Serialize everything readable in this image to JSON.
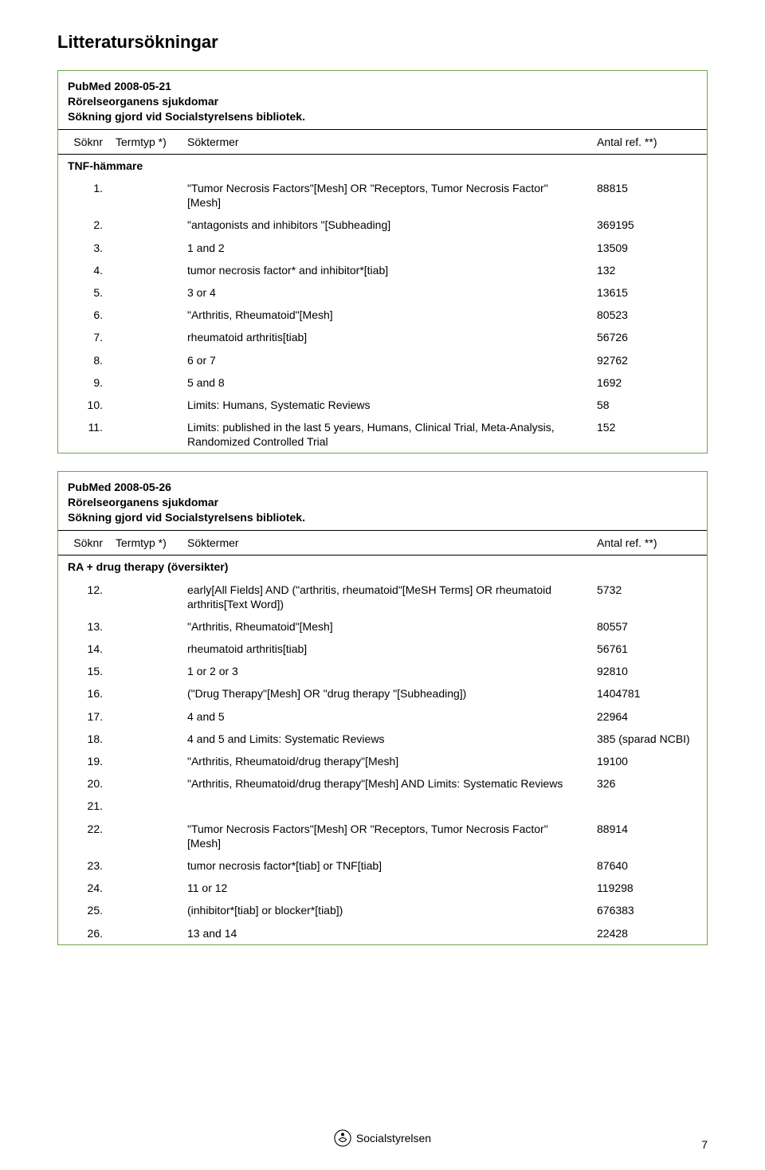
{
  "title": "Litteratursökningar",
  "search1": {
    "line1": "PubMed 2008-05-21",
    "line2": "Rörelseorganens sjukdomar",
    "line3": "Sökning gjord vid Socialstyrelsens bibliotek.",
    "h_num": "Söknr",
    "h_typ": "Termtyp *)",
    "h_term": "Söktermer",
    "h_ref": "Antal ref. **)",
    "subhead": "TNF-hämmare",
    "rows": [
      {
        "n": "1.",
        "t": "\"Tumor Necrosis Factors\"[Mesh] OR \"Receptors, Tumor Necrosis Factor\"[Mesh]",
        "r": "88815"
      },
      {
        "n": "2.",
        "t": "\"antagonists and inhibitors \"[Subheading]",
        "r": "369195"
      },
      {
        "n": "3.",
        "t": "1 and 2",
        "r": "13509"
      },
      {
        "n": "4.",
        "t": "tumor necrosis factor* and inhibitor*[tiab]",
        "r": "132"
      },
      {
        "n": "5.",
        "t": "3 or 4",
        "r": "13615"
      },
      {
        "n": "6.",
        "t": "\"Arthritis, Rheumatoid\"[Mesh]",
        "r": "80523"
      },
      {
        "n": "7.",
        "t": "rheumatoid arthritis[tiab]",
        "r": "56726"
      },
      {
        "n": "8.",
        "t": "6 or 7",
        "r": "92762"
      },
      {
        "n": "9.",
        "t": "5 and 8",
        "r": "1692"
      },
      {
        "n": "10.",
        "t": "Limits: Humans, Systematic Reviews",
        "r": "58"
      },
      {
        "n": "11.",
        "t": "Limits: published in the last 5 years, Humans, Clinical Trial, Meta-Analysis, Randomized Controlled Trial",
        "r": "152"
      }
    ]
  },
  "search2": {
    "line1": "PubMed 2008-05-26",
    "line2": "Rörelseorganens sjukdomar",
    "line3": "Sökning gjord vid Socialstyrelsens bibliotek.",
    "h_num": "Söknr",
    "h_typ": "Termtyp *)",
    "h_term": "Söktermer",
    "h_ref": "Antal ref. **)",
    "subhead": "RA + drug therapy (översikter)",
    "rows": [
      {
        "n": "12.",
        "t": "early[All Fields] AND (\"arthritis, rheumatoid\"[MeSH Terms] OR rheumatoid arthritis[Text Word])",
        "r": "5732"
      },
      {
        "n": "13.",
        "t": "\"Arthritis, Rheumatoid\"[Mesh]",
        "r": "80557"
      },
      {
        "n": "14.",
        "t": "rheumatoid arthritis[tiab]",
        "r": "56761"
      },
      {
        "n": "15.",
        "t": "1 or 2 or 3",
        "r": "92810"
      },
      {
        "n": "16.",
        "t": "(\"Drug Therapy\"[Mesh] OR \"drug therapy \"[Subheading])",
        "r": "1404781"
      },
      {
        "n": "17.",
        "t": "4 and 5",
        "r": "22964"
      },
      {
        "n": "18.",
        "t": "4 and 5 and Limits: Systematic Reviews",
        "r": "385 (sparad NCBI)"
      },
      {
        "n": "19.",
        "t": "\"Arthritis, Rheumatoid/drug therapy\"[Mesh]",
        "r": "19100"
      },
      {
        "n": "20.",
        "t": "\"Arthritis, Rheumatoid/drug therapy\"[Mesh] AND Limits: Systematic Reviews",
        "r": "326"
      },
      {
        "n": "21.",
        "t": "",
        "r": ""
      },
      {
        "n": "22.",
        "t": "\"Tumor Necrosis Factors\"[Mesh] OR \"Receptors, Tumor Necrosis Factor\"[Mesh]",
        "r": "88914"
      },
      {
        "n": "23.",
        "t": "tumor necrosis factor*[tiab] or TNF[tiab]",
        "r": "87640"
      },
      {
        "n": "24.",
        "t": "11 or 12",
        "r": "119298"
      },
      {
        "n": "25.",
        "t": "(inhibitor*[tiab] or blocker*[tiab])",
        "r": "676383"
      },
      {
        "n": "26.",
        "t": "13 and 14",
        "r": "22428"
      }
    ]
  },
  "footer": {
    "org": "Socialstyrelsen"
  },
  "page_number": "7"
}
